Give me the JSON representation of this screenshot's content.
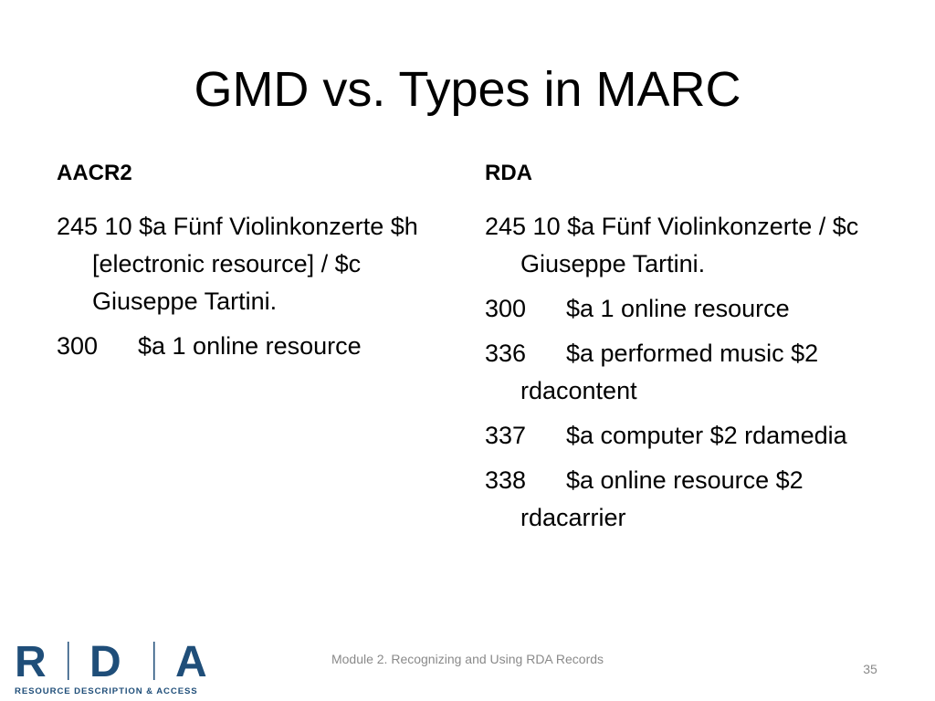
{
  "slide": {
    "title": "GMD vs. Types in MARC",
    "left": {
      "heading": "AACR2",
      "line1": "245 10 $a Fünf Violinkonzerte $h [electronic resource] / $c Giuseppe Tartini.",
      "line2_tag": "300",
      "line2_text": "$a 1 online resource"
    },
    "right": {
      "heading": "RDA",
      "line1": "245 10 $a Fünf Violinkonzerte / $c Giuseppe Tartini.",
      "line2_tag": "300",
      "line2_text": "$a 1 online resource",
      "line3_tag": "336",
      "line3_text": "$a performed music $2 rdacontent",
      "line4_tag": "337",
      "line4_text": "$a computer $2 rdamedia",
      "line5_tag": "338",
      "line5_text": "$a online resource $2 rdacarrier"
    }
  },
  "footer": {
    "logo_text": "RDA",
    "logo_subtitle": "RESOURCE DESCRIPTION & ACCESS",
    "logo_color": "#1f4e79",
    "module_text": "Module 2. Recognizing and Using RDA Records",
    "page_number": "35"
  }
}
